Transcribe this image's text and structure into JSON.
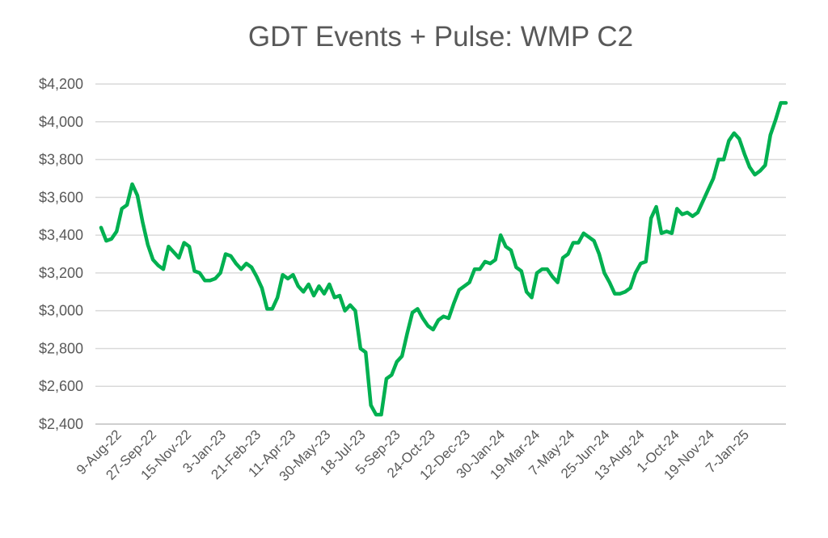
{
  "chart_data": {
    "type": "line",
    "title": "GDT Events + Pulse: WMP C2",
    "xlabel": "",
    "ylabel": "",
    "ylim": [
      2400,
      4200
    ],
    "yticks": [
      2400,
      2600,
      2800,
      3000,
      3200,
      3400,
      3600,
      3800,
      4000,
      4200
    ],
    "ytick_labels": [
      "$2,400",
      "$2,600",
      "$2,800",
      "$3,000",
      "$3,200",
      "$3,400",
      "$3,600",
      "$3,800",
      "$4,000",
      "$4,200"
    ],
    "xtick_labels": [
      "9-Aug-22",
      "27-Sep-22",
      "15-Nov-22",
      "3-Jan-23",
      "21-Feb-23",
      "11-Apr-23",
      "30-May-23",
      "18-Jul-23",
      "5-Sep-23",
      "24-Oct-23",
      "12-Dec-23",
      "30-Jan-24",
      "19-Mar-24",
      "7-May-24",
      "25-Jun-24",
      "13-Aug-24",
      "1-Oct-24",
      "19-Nov-24",
      "7-Jan-25"
    ],
    "grid": true,
    "legend": "none",
    "series": [
      {
        "name": "WMP C2",
        "color": "#00b050",
        "values": [
          3440,
          3370,
          3380,
          3420,
          3540,
          3560,
          3670,
          3610,
          3470,
          3350,
          3270,
          3240,
          3220,
          3340,
          3310,
          3280,
          3360,
          3340,
          3210,
          3200,
          3160,
          3160,
          3170,
          3200,
          3300,
          3290,
          3250,
          3220,
          3250,
          3230,
          3180,
          3120,
          3010,
          3010,
          3070,
          3190,
          3170,
          3190,
          3130,
          3100,
          3140,
          3080,
          3130,
          3090,
          3140,
          3070,
          3080,
          3000,
          3030,
          3000,
          2800,
          2780,
          2500,
          2450,
          2450,
          2640,
          2660,
          2730,
          2760,
          2880,
          2990,
          3010,
          2960,
          2920,
          2900,
          2950,
          2970,
          2960,
          3040,
          3110,
          3130,
          3150,
          3220,
          3220,
          3260,
          3250,
          3270,
          3400,
          3340,
          3320,
          3230,
          3210,
          3100,
          3070,
          3200,
          3220,
          3220,
          3180,
          3150,
          3280,
          3300,
          3360,
          3360,
          3410,
          3390,
          3370,
          3300,
          3200,
          3150,
          3090,
          3090,
          3100,
          3120,
          3200,
          3250,
          3260,
          3490,
          3550,
          3410,
          3420,
          3410,
          3540,
          3510,
          3520,
          3500,
          3520,
          3580,
          3640,
          3700,
          3800,
          3800,
          3900,
          3940,
          3910,
          3830,
          3760,
          3720,
          3740,
          3770,
          3930,
          4010,
          4100,
          4100
        ]
      }
    ]
  }
}
